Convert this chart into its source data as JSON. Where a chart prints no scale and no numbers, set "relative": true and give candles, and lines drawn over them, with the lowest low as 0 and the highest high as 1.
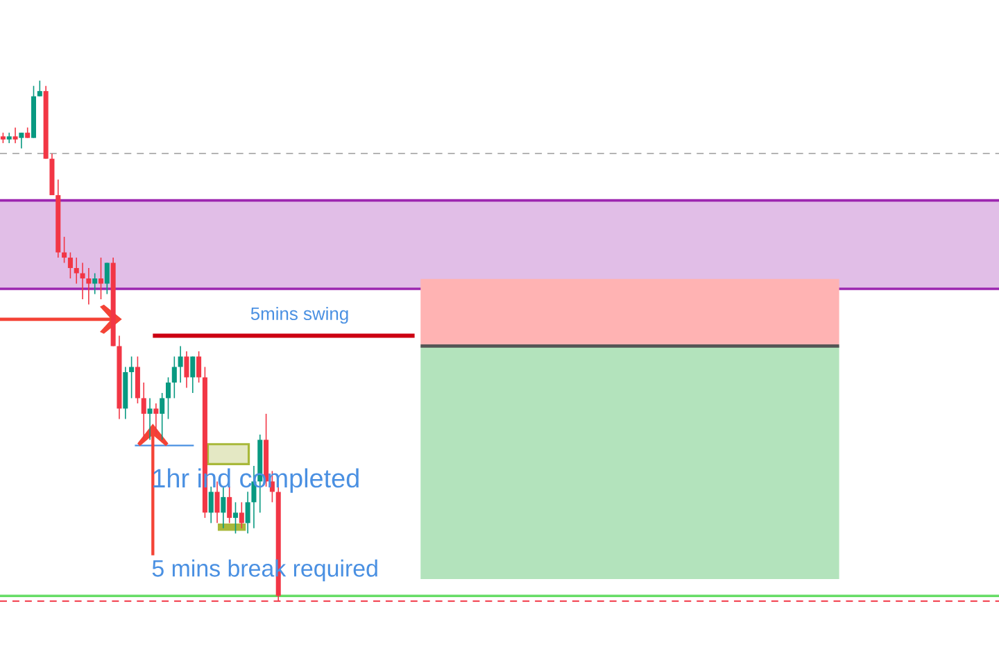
{
  "chart_data": {
    "type": "candlestick",
    "relative": true,
    "tick_labels": false,
    "categories": [
      null,
      null,
      null,
      null,
      null,
      null,
      null,
      null,
      null,
      null,
      null,
      null,
      null,
      null,
      null,
      null,
      null,
      null,
      null,
      null,
      null,
      null,
      null,
      null,
      null,
      null,
      null,
      null,
      null,
      null,
      null,
      null,
      null,
      null,
      null,
      null,
      null,
      null,
      null,
      null,
      null,
      null,
      null,
      null,
      null,
      null
    ],
    "ohlc": [
      [
        0.89,
        0.9,
        0.88,
        0.89
      ],
      [
        0.89,
        0.9,
        0.88,
        0.89
      ],
      [
        0.89,
        0.91,
        0.88,
        0.89
      ],
      [
        0.89,
        0.9,
        0.87,
        0.9
      ],
      [
        0.9,
        0.91,
        0.89,
        0.89
      ],
      [
        0.89,
        0.99,
        0.89,
        0.97
      ],
      [
        0.97,
        1.0,
        0.97,
        0.98
      ],
      [
        0.98,
        0.99,
        0.85,
        0.85
      ],
      [
        0.85,
        0.86,
        0.78,
        0.78
      ],
      [
        0.78,
        0.81,
        0.66,
        0.67
      ],
      [
        0.67,
        0.7,
        0.65,
        0.66
      ],
      [
        0.66,
        0.67,
        0.62,
        0.64
      ],
      [
        0.64,
        0.66,
        0.61,
        0.63
      ],
      [
        0.63,
        0.65,
        0.58,
        0.62
      ],
      [
        0.62,
        0.64,
        0.57,
        0.61
      ],
      [
        0.61,
        0.63,
        0.59,
        0.62
      ],
      [
        0.62,
        0.66,
        0.58,
        0.61
      ],
      [
        0.61,
        0.65,
        0.59,
        0.65
      ],
      [
        0.65,
        0.66,
        0.49,
        0.49
      ],
      [
        0.49,
        0.51,
        0.35,
        0.37
      ],
      [
        0.37,
        0.45,
        0.35,
        0.44
      ],
      [
        0.44,
        0.47,
        0.39,
        0.45
      ],
      [
        0.45,
        0.47,
        0.38,
        0.39
      ],
      [
        0.39,
        0.42,
        0.31,
        0.36
      ],
      [
        0.36,
        0.39,
        0.31,
        0.37
      ],
      [
        0.37,
        0.38,
        0.32,
        0.36
      ],
      [
        0.36,
        0.4,
        0.31,
        0.39
      ],
      [
        0.39,
        0.43,
        0.35,
        0.42
      ],
      [
        0.42,
        0.47,
        0.39,
        0.45
      ],
      [
        0.45,
        0.49,
        0.42,
        0.47
      ],
      [
        0.47,
        0.48,
        0.41,
        0.43
      ],
      [
        0.43,
        0.47,
        0.4,
        0.47
      ],
      [
        0.47,
        0.48,
        0.42,
        0.43
      ],
      [
        0.43,
        0.45,
        0.16,
        0.17
      ],
      [
        0.17,
        0.22,
        0.15,
        0.21
      ],
      [
        0.21,
        0.23,
        0.15,
        0.17
      ],
      [
        0.17,
        0.22,
        0.14,
        0.2
      ],
      [
        0.2,
        0.22,
        0.15,
        0.16
      ],
      [
        0.16,
        0.19,
        0.13,
        0.17
      ],
      [
        0.17,
        0.19,
        0.14,
        0.15
      ],
      [
        0.15,
        0.21,
        0.13,
        0.19
      ],
      [
        0.19,
        0.26,
        0.14,
        0.23
      ],
      [
        0.23,
        0.32,
        0.17,
        0.31
      ],
      [
        0.31,
        0.36,
        0.22,
        0.23
      ],
      [
        0.23,
        0.25,
        0.19,
        0.21
      ],
      [
        0.21,
        0.22,
        0,
        0.01
      ]
    ],
    "colors": [
      "#f23645",
      "#089981",
      "#f23645",
      "#089981",
      "#f23645",
      "#089981",
      "#089981",
      "#f23645",
      "#f23645",
      "#f23645",
      "#f23645",
      "#f23645",
      "#f23645",
      "#f23645",
      "#f23645",
      "#089981",
      "#f23645",
      "#089981",
      "#f23645",
      "#f23645",
      "#089981",
      "#089981",
      "#f23645",
      "#f23645",
      "#089981",
      "#f23645",
      "#089981",
      "#089981",
      "#089981",
      "#089981",
      "#f23645",
      "#089981",
      "#f23645",
      "#f23645",
      "#089981",
      "#f23645",
      "#089981",
      "#f23645",
      "#089981",
      "#f23645",
      "#089981",
      "#089981",
      "#089981",
      "#f23645",
      "#f23645",
      "#f23645"
    ],
    "bands": [
      {
        "axis": "y",
        "from": 0.6,
        "to": 0.77,
        "color": "#e1bee7"
      }
    ],
    "ref_lines": [
      {
        "axis": "y",
        "value": 0.77,
        "color": "#9c27b0",
        "line_style": "solid"
      },
      {
        "axis": "y",
        "value": 0.6,
        "color": "#9c27b0",
        "line_style": "solid"
      },
      {
        "axis": "y",
        "value": 0.86,
        "color": "#aaaaaa",
        "line_style": "dashed"
      },
      {
        "axis": "y",
        "value": 0.51,
        "color": "#cc0011",
        "line_style": "solid",
        "label": "5mins swing"
      },
      {
        "axis": "y",
        "value": 0.01,
        "color": "#66dd66",
        "line_style": "solid"
      },
      {
        "axis": "y",
        "value": 0.0,
        "color": "#f23645",
        "line_style": "dashed"
      }
    ],
    "annotations": [
      "1hr ind completed",
      "5 mins break required"
    ]
  }
}
